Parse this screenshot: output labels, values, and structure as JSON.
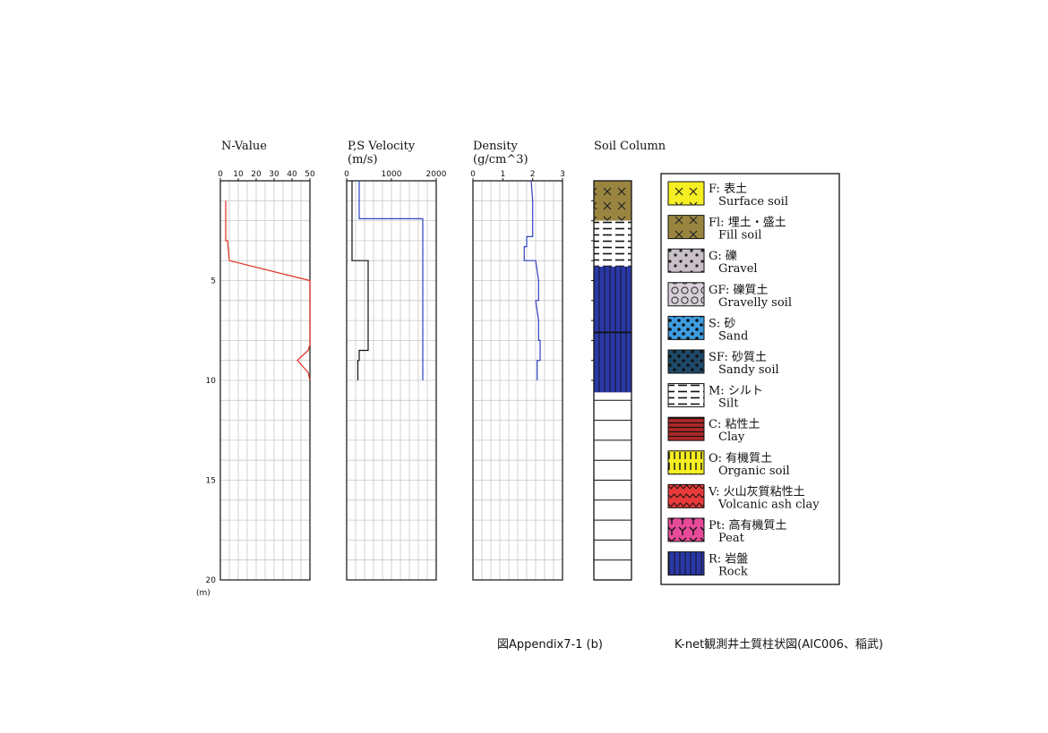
{
  "chart_data": [
    {
      "type": "line",
      "title": "N-Value",
      "x_ticks": [
        0,
        10,
        20,
        30,
        40,
        50
      ],
      "xlim": [
        0,
        50
      ],
      "ylim": [
        0,
        20
      ],
      "y_ticks": [
        5,
        10,
        15,
        20
      ],
      "y_unit": "(m)",
      "grid": true,
      "series": [
        {
          "color": "#e03020",
          "points": [
            [
              3,
              1
            ],
            [
              3,
              2
            ],
            [
              3,
              3
            ],
            [
              4,
              3
            ],
            [
              5,
              4
            ],
            [
              50,
              5
            ],
            [
              50,
              6
            ],
            [
              50,
              7
            ],
            [
              50,
              8.2
            ],
            [
              49,
              8.5
            ],
            [
              43,
              9
            ],
            [
              49,
              9.6
            ],
            [
              50,
              10
            ]
          ]
        }
      ]
    },
    {
      "type": "line",
      "title": "P,S Velocity",
      "subtitle": "(m/s)",
      "x_ticks": [
        0,
        1000,
        2000
      ],
      "xlim": [
        0,
        2000
      ],
      "ylim": [
        0,
        20
      ],
      "grid": true,
      "series": [
        {
          "color": "#111111",
          "points": [
            [
              120,
              0
            ],
            [
              120,
              4
            ],
            [
              480,
              4
            ],
            [
              480,
              8.5
            ],
            [
              280,
              8.5
            ],
            [
              280,
              9
            ],
            [
              250,
              9
            ],
            [
              250,
              10
            ]
          ]
        },
        {
          "color": "#3040c0",
          "points": [
            [
              280,
              0
            ],
            [
              280,
              1.9
            ],
            [
              1700,
              1.9
            ],
            [
              1700,
              10
            ]
          ]
        }
      ]
    },
    {
      "type": "line",
      "title": "Density",
      "subtitle": "(g/cm^3)",
      "x_ticks": [
        0,
        1,
        2,
        3
      ],
      "xlim": [
        0,
        3
      ],
      "ylim": [
        0,
        20
      ],
      "grid": true,
      "series": [
        {
          "color": "#3040c0",
          "points": [
            [
              1.95,
              0
            ],
            [
              2.0,
              1
            ],
            [
              2.0,
              2
            ],
            [
              2.0,
              2.8
            ],
            [
              1.8,
              2.8
            ],
            [
              1.8,
              3.3
            ],
            [
              1.72,
              3.3
            ],
            [
              1.72,
              4
            ],
            [
              2.1,
              4
            ],
            [
              2.2,
              5
            ],
            [
              2.2,
              6
            ],
            [
              2.1,
              6
            ],
            [
              2.2,
              7
            ],
            [
              2.2,
              8
            ],
            [
              2.25,
              8
            ],
            [
              2.25,
              9
            ],
            [
              2.15,
              9
            ],
            [
              2.15,
              10
            ]
          ]
        }
      ]
    }
  ],
  "soil_column": {
    "title": "Soil Column",
    "layers": [
      {
        "code": "Fl",
        "from": 0,
        "to": 2.0
      },
      {
        "code": "M",
        "from": 2.0,
        "to": 4.3
      },
      {
        "code": "R",
        "from": 4.3,
        "to": 10.6
      }
    ],
    "divisions_to": 20
  },
  "legend": [
    {
      "code": "F",
      "jp": "表土",
      "en": "Surface soil",
      "pattern": "cross",
      "bg": "#f5ee22"
    },
    {
      "code": "Fl",
      "jp": "埋土・盛土",
      "en": "Fill soil",
      "pattern": "cross",
      "bg": "#9a8540"
    },
    {
      "code": "G",
      "jp": "礫",
      "en": "Gravel",
      "pattern": "gravel",
      "bg": "#c8bfc8"
    },
    {
      "code": "GF",
      "jp": "礫質土",
      "en": "Gravelly soil",
      "pattern": "circles",
      "bg": "#d8d0d8"
    },
    {
      "code": "S",
      "jp": "砂",
      "en": "Sand",
      "pattern": "dots",
      "bg": "#3d9ce0"
    },
    {
      "code": "SF",
      "jp": "砂質土",
      "en": "Sandy soil",
      "pattern": "dots",
      "bg": "#1e4a6a"
    },
    {
      "code": "M",
      "jp": "シルト",
      "en": "Silt",
      "pattern": "dashes",
      "bg": "#ffffff"
    },
    {
      "code": "C",
      "jp": "粘性土",
      "en": "Clay",
      "pattern": "hlines",
      "bg": "#b02828"
    },
    {
      "code": "O",
      "jp": "有機質土",
      "en": "Organic soil",
      "pattern": "vdash",
      "bg": "#f5ee22"
    },
    {
      "code": "V",
      "jp": "火山灰質粘性土",
      "en": "Volcanic ash clay",
      "pattern": "wave",
      "bg": "#e83a3a"
    },
    {
      "code": "Pt",
      "jp": "高有機質土",
      "en": "Peat",
      "pattern": "yyy",
      "bg": "#e84a9a"
    },
    {
      "code": "R",
      "jp": "岩盤",
      "en": "Rock",
      "pattern": "vlines",
      "bg": "#2a38a8"
    }
  ],
  "caption": {
    "left": "図Appendix7-1 (b)",
    "right": "K-net観測井土質柱状図(AIC006、稲武)"
  },
  "colors": {
    "grid": "#c8c8c8",
    "axis": "#111111",
    "n_value": "#e03020",
    "p_velocity": "#3040c0",
    "rock": "#2a38a8",
    "fill": "#9a8540"
  }
}
